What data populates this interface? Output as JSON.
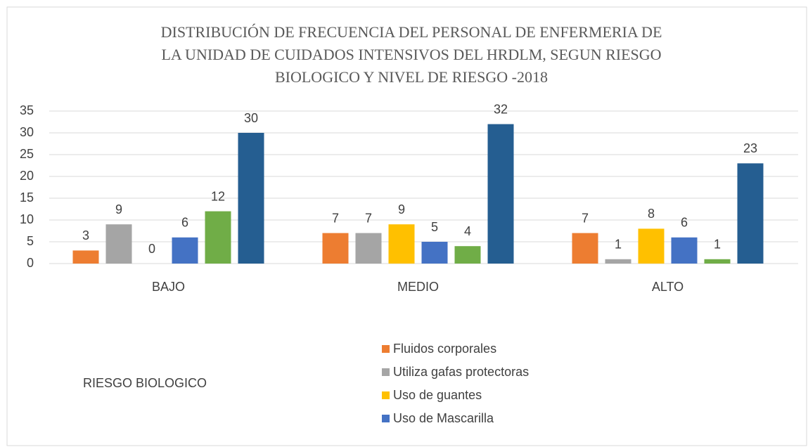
{
  "chart_data": {
    "type": "bar",
    "title": [
      "DISTRIBUCIÓN DE FRECUENCIA DEL PERSONAL DE ENFERMERIA DE",
      "LA UNIDAD DE CUIDADOS INTENSIVOS DEL HRDLM, SEGUN RIESGO",
      "BIOLOGICO Y NIVEL DE RIESGO -2018"
    ],
    "x_label": "RIESGO BIOLOGICO",
    "categories": [
      "BAJO",
      "MEDIO",
      "ALTO"
    ],
    "series": [
      {
        "name": "Fluidos corporales",
        "color": "#ED7D31",
        "values": [
          3,
          7,
          7
        ]
      },
      {
        "name": "Utiliza gafas protectoras",
        "color": "#A5A5A5",
        "values": [
          9,
          7,
          1
        ]
      },
      {
        "name": "Uso de guantes",
        "color": "#FFC000",
        "values": [
          0,
          9,
          8
        ]
      },
      {
        "name": "Uso de Mascarilla",
        "color": "#4472C4",
        "values": [
          6,
          5,
          6
        ]
      },
      {
        "color": "#70AD47",
        "values": [
          12,
          4,
          1
        ]
      },
      {
        "color": "#255E91",
        "values": [
          30,
          32,
          23
        ]
      }
    ],
    "ylim": [
      0,
      35
    ],
    "yticks": [
      0,
      5,
      10,
      15,
      20,
      25,
      30,
      35
    ],
    "grid": true
  }
}
